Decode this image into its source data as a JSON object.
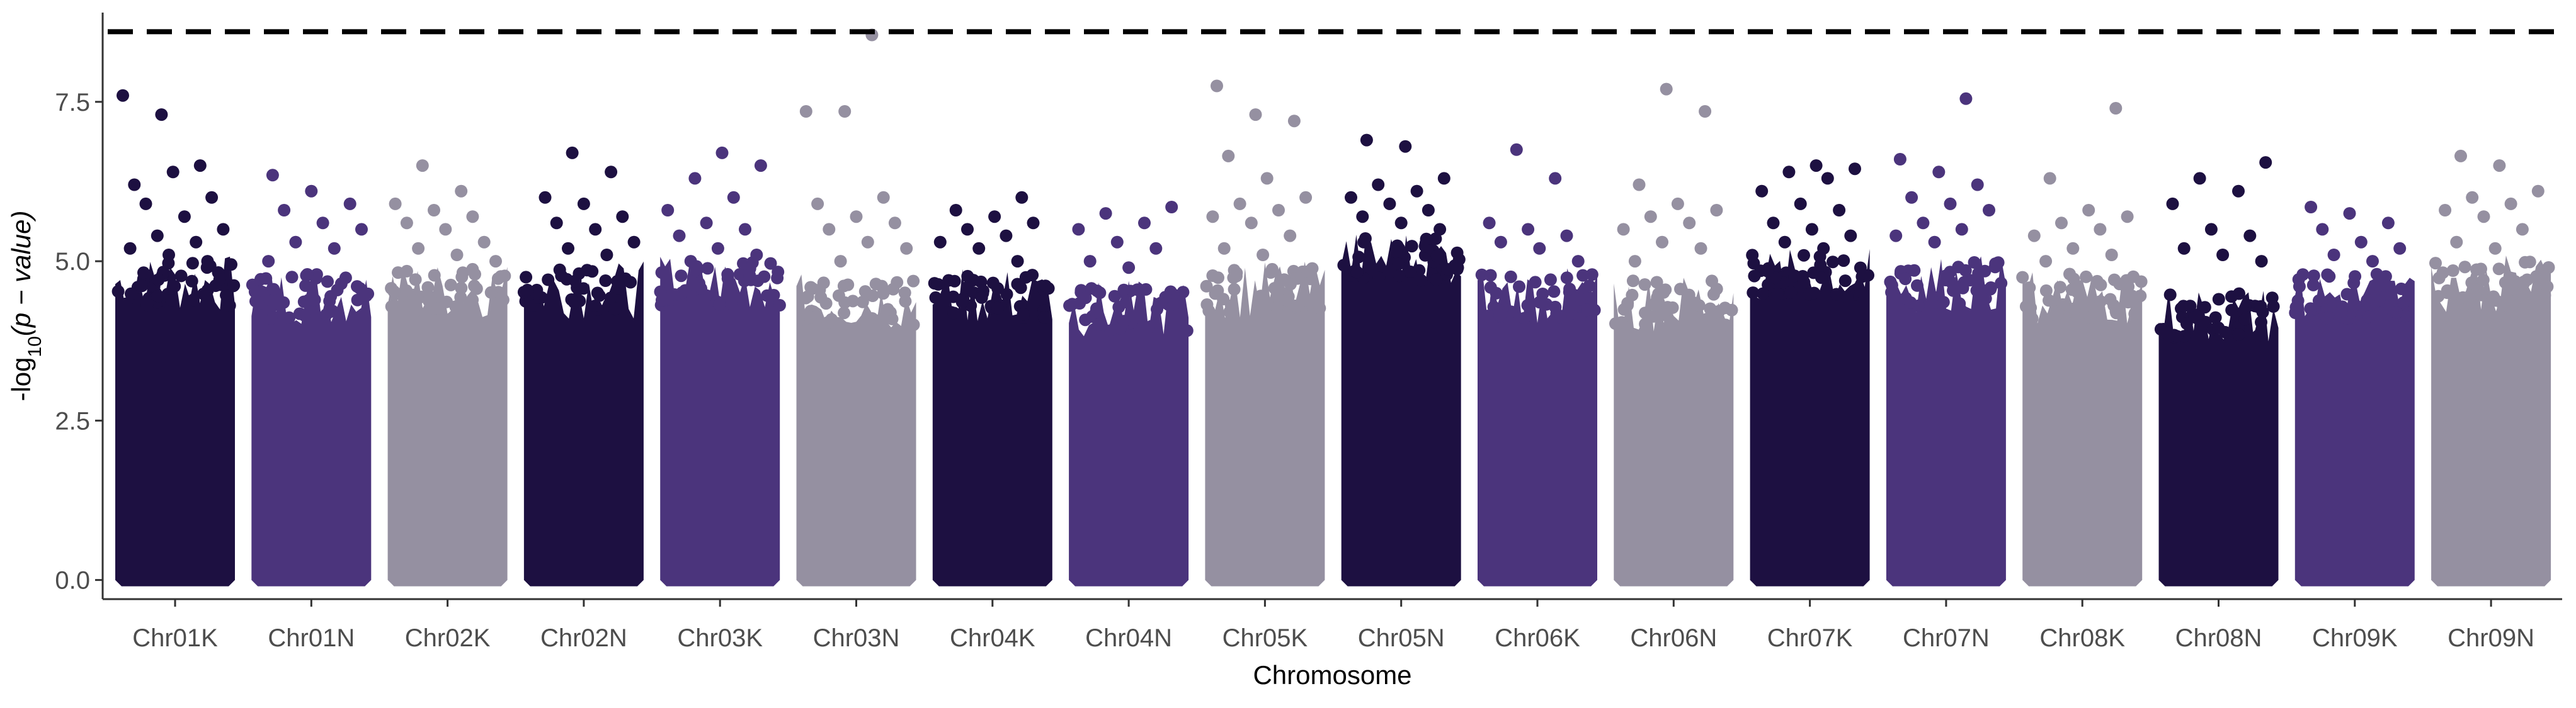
{
  "chart_data": {
    "type": "scatter",
    "subtype": "manhattan",
    "xlabel": "Chromosome",
    "ylabel_prefix": "-log",
    "ylabel_subscript": "10",
    "ylabel_suffix": "(p − value)",
    "ylim": [
      -0.3,
      8.9
    ],
    "yticks": [
      0.0,
      2.5,
      5.0,
      7.5
    ],
    "ytick_labels": [
      "0.0",
      "2.5",
      "5.0",
      "7.5"
    ],
    "threshold": 8.6,
    "threshold_style": "dashed",
    "grid": false,
    "colors": [
      "#1d1041",
      "#4b347c",
      "#9590a1"
    ],
    "categories": [
      "Chr01K",
      "Chr01N",
      "Chr02K",
      "Chr02N",
      "Chr03K",
      "Chr03N",
      "Chr04K",
      "Chr04N",
      "Chr05K",
      "Chr05N",
      "Chr06K",
      "Chr06N",
      "Chr07K",
      "Chr07N",
      "Chr08K",
      "Chr08N",
      "Chr09K",
      "Chr09N"
    ],
    "series": [
      {
        "category": "Chr01K",
        "color_index": 0,
        "bulk_max": 4.9,
        "points": [
          7.6,
          7.3,
          6.5,
          6.2,
          6.4,
          6.0,
          5.9,
          5.7,
          5.5,
          5.4,
          5.3,
          5.2,
          5.1,
          5.0
        ]
      },
      {
        "category": "Chr01N",
        "color_index": 1,
        "bulk_max": 4.7,
        "points": [
          6.35,
          6.1,
          5.9,
          5.8,
          5.6,
          5.5,
          5.3,
          5.2,
          5.0
        ]
      },
      {
        "category": "Chr02K",
        "color_index": 2,
        "bulk_max": 4.8,
        "points": [
          6.5,
          6.1,
          5.9,
          5.8,
          5.7,
          5.6,
          5.5,
          5.3,
          5.2,
          5.1,
          5.0
        ]
      },
      {
        "category": "Chr02N",
        "color_index": 0,
        "bulk_max": 4.8,
        "points": [
          6.7,
          6.4,
          6.0,
          5.9,
          5.7,
          5.6,
          5.5,
          5.3,
          5.2,
          5.1
        ]
      },
      {
        "category": "Chr03K",
        "color_index": 1,
        "bulk_max": 4.9,
        "points": [
          6.7,
          6.5,
          6.3,
          6.0,
          5.8,
          5.6,
          5.5,
          5.4,
          5.2,
          5.1,
          5.0
        ]
      },
      {
        "category": "Chr03N",
        "color_index": 2,
        "bulk_max": 4.6,
        "points": [
          8.55,
          7.35,
          7.35,
          6.0,
          5.9,
          5.7,
          5.6,
          5.5,
          5.3,
          5.2,
          5.0
        ]
      },
      {
        "category": "Chr04K",
        "color_index": 0,
        "bulk_max": 4.7,
        "points": [
          6.0,
          5.8,
          5.7,
          5.6,
          5.5,
          5.4,
          5.3,
          5.2,
          5.0
        ]
      },
      {
        "category": "Chr04N",
        "color_index": 1,
        "bulk_max": 4.5,
        "points": [
          5.85,
          5.75,
          5.6,
          5.5,
          5.3,
          5.2,
          5.0,
          4.9
        ]
      },
      {
        "category": "Chr05K",
        "color_index": 2,
        "bulk_max": 4.8,
        "points": [
          7.75,
          7.3,
          7.2,
          6.65,
          6.3,
          6.0,
          5.9,
          5.8,
          5.7,
          5.6,
          5.4,
          5.2,
          5.1
        ]
      },
      {
        "category": "Chr05N",
        "color_index": 0,
        "bulk_max": 5.3,
        "points": [
          6.9,
          6.8,
          6.3,
          6.2,
          6.1,
          6.0,
          5.9,
          5.8,
          5.7,
          5.6,
          5.5
        ]
      },
      {
        "category": "Chr06K",
        "color_index": 1,
        "bulk_max": 4.7,
        "points": [
          6.75,
          6.3,
          5.6,
          5.5,
          5.4,
          5.3,
          5.2,
          5.0
        ]
      },
      {
        "category": "Chr06N",
        "color_index": 2,
        "bulk_max": 4.6,
        "points": [
          7.7,
          7.35,
          6.2,
          5.9,
          5.8,
          5.7,
          5.6,
          5.5,
          5.3,
          5.2,
          5.0
        ]
      },
      {
        "category": "Chr07K",
        "color_index": 0,
        "bulk_max": 5.0,
        "points": [
          6.5,
          6.45,
          6.4,
          6.3,
          6.1,
          5.9,
          5.8,
          5.6,
          5.5,
          5.4,
          5.3,
          5.2
        ]
      },
      {
        "category": "Chr07N",
        "color_index": 1,
        "bulk_max": 4.9,
        "points": [
          7.55,
          6.6,
          6.4,
          6.2,
          6.0,
          5.9,
          5.8,
          5.6,
          5.5,
          5.4,
          5.3
        ]
      },
      {
        "category": "Chr08K",
        "color_index": 2,
        "bulk_max": 4.7,
        "points": [
          7.4,
          6.3,
          5.8,
          5.7,
          5.6,
          5.5,
          5.4,
          5.2,
          5.1,
          5.0
        ]
      },
      {
        "category": "Chr08N",
        "color_index": 0,
        "bulk_max": 4.4,
        "points": [
          6.55,
          6.3,
          6.1,
          5.9,
          5.5,
          5.4,
          5.2,
          5.1,
          5.0
        ]
      },
      {
        "category": "Chr09K",
        "color_index": 1,
        "bulk_max": 4.7,
        "points": [
          5.85,
          5.75,
          5.6,
          5.5,
          5.3,
          5.2,
          5.1,
          5.0
        ]
      },
      {
        "category": "Chr09N",
        "color_index": 2,
        "bulk_max": 4.9,
        "points": [
          6.65,
          6.5,
          6.1,
          6.0,
          5.9,
          5.8,
          5.7,
          5.5,
          5.3,
          5.2
        ]
      }
    ]
  }
}
